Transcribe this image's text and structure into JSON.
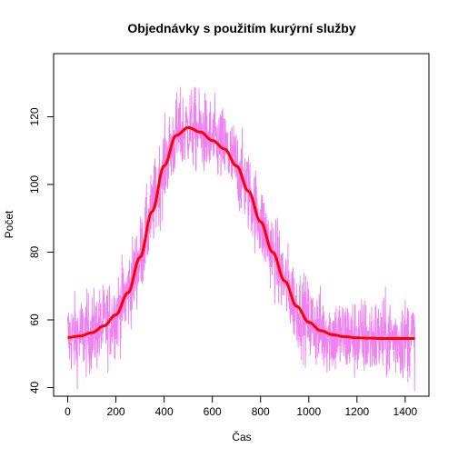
{
  "chart_data": {
    "type": "line",
    "title": "Objednávky s použitím kurýrní služby",
    "xlabel": "Čas",
    "ylabel": "Počet",
    "xlim": [
      0,
      1440
    ],
    "ylim": [
      40,
      135
    ],
    "x_ticks": [
      0,
      200,
      400,
      600,
      800,
      1000,
      1200,
      1400
    ],
    "y_ticks": [
      40,
      60,
      80,
      100,
      120
    ],
    "grid": false,
    "series": [
      {
        "role": "raw",
        "color": "#ee82ee",
        "x_range": [
          0,
          1440
        ],
        "x_step": 1,
        "noise_amplitude": 6,
        "note_values": "raw per-minute counts fluctuating around the smoothed curve"
      },
      {
        "role": "smoothed",
        "color": "#ff0000",
        "x": [
          0,
          50,
          100,
          150,
          200,
          250,
          300,
          350,
          400,
          450,
          500,
          550,
          600,
          650,
          700,
          750,
          800,
          850,
          900,
          950,
          1000,
          1050,
          1100,
          1150,
          1200,
          1250,
          1300,
          1350,
          1400,
          1440
        ],
        "y": [
          54.8,
          55.2,
          56.2,
          58.2,
          61.5,
          68.0,
          78.5,
          92.0,
          105.5,
          114.5,
          116.8,
          115.5,
          113.0,
          110.5,
          105.5,
          98.0,
          89.0,
          80.0,
          71.5,
          64.0,
          59.3,
          56.8,
          55.6,
          55.0,
          54.7,
          54.6,
          54.5,
          54.5,
          54.5,
          54.5
        ]
      }
    ]
  }
}
